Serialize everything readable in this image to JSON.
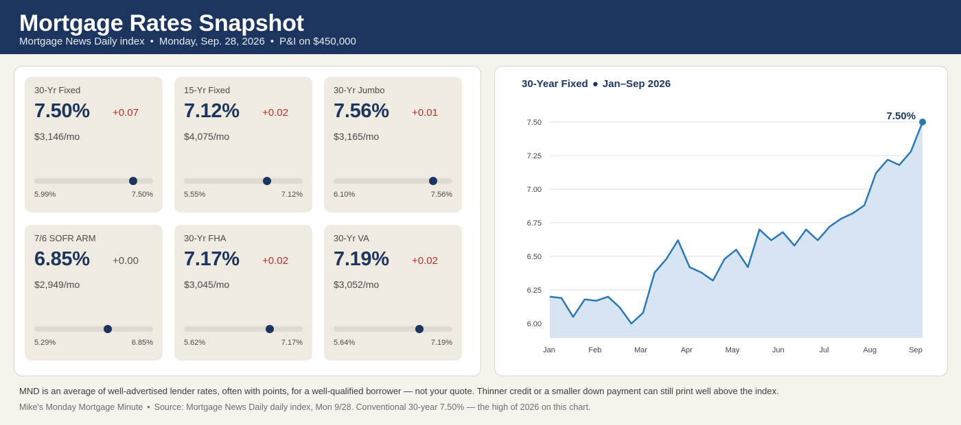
{
  "header": {
    "title": "Mortgage Rates Snapshot",
    "source": "Mortgage News Daily index",
    "date": "Monday, Sep. 28, 2026",
    "basis": "P&I on $450,000",
    "separator": "•"
  },
  "cards": [
    {
      "label": "30-Yr Fixed",
      "rate": "7.50%",
      "change": "+0.07",
      "payment": "$3,146/mo",
      "range_low": "5.99%",
      "range_high": "7.50%",
      "position": 0.83
    },
    {
      "label": "15-Yr Fixed",
      "rate": "7.12%",
      "change": "+0.02",
      "payment": "$4,075/mo",
      "range_low": "5.55%",
      "range_high": "7.12%",
      "position": 0.7
    },
    {
      "label": "30-Yr Jumbo",
      "rate": "7.56%",
      "change": "+0.01",
      "payment": "$3,165/mo",
      "range_low": "6.10%",
      "range_high": "7.56%",
      "position": 0.84
    },
    {
      "label": "7/6 SOFR ARM",
      "rate": "6.85%",
      "change": "+0.00",
      "payment": "$2,949/mo",
      "range_low": "5.29%",
      "range_high": "6.85%",
      "position": 0.62
    },
    {
      "label": "30-Yr FHA",
      "rate": "7.17%",
      "change": "+0.02",
      "payment": "$3,045/mo",
      "range_low": "5.62%",
      "range_high": "7.17%",
      "position": 0.72
    },
    {
      "label": "30-Yr VA",
      "rate": "7.19%",
      "change": "+0.02",
      "payment": "$3,052/mo",
      "range_low": "5.64%",
      "range_high": "7.19%",
      "position": 0.72
    }
  ],
  "chart": {
    "series_name": "30-Year Fixed",
    "period": "Jan–Sep 2026",
    "separator": "●",
    "end_label": "7.50%"
  },
  "chart_data": {
    "type": "area",
    "title": "30-Year Fixed ● Jan–Sep 2026",
    "xlabel": "",
    "ylabel": "",
    "ylim": [
      5.9,
      7.6
    ],
    "yticks": [
      "7.50",
      "7.25",
      "7.00",
      "6.75",
      "6.50",
      "6.25",
      "6.00"
    ],
    "xticks": [
      "Jan",
      "Feb",
      "Mar",
      "Apr",
      "May",
      "Jun",
      "Jul",
      "Aug",
      "Sep"
    ],
    "grid": true,
    "series": [
      {
        "values": [
          6.2,
          6.19,
          6.05,
          6.18,
          6.17,
          6.2,
          6.12,
          6.0,
          6.08,
          6.38,
          6.48,
          6.62,
          6.42,
          6.38,
          6.32,
          6.48,
          6.55,
          6.42,
          6.7,
          6.62,
          6.68,
          6.58,
          6.7,
          6.62,
          6.72,
          6.78,
          6.82,
          6.88,
          7.12,
          7.22,
          7.18,
          7.28,
          7.5
        ]
      }
    ],
    "colors": {
      "line": "#2b77b5",
      "fill": "#d7e5f2",
      "end_marker": "#2b77b5"
    }
  },
  "footnote": "MND is an average of well-advertised lender rates, often with points, for a well-qualified borrower — not your quote. Thinner credit or a smaller down payment can still print well above the index.",
  "source_line": {
    "byline": "Mike's Monday Mortgage Minute",
    "separator": "•",
    "text": "Source: Mortgage News Daily daily index, Mon 9/28. Conventional 30-year 7.50% — the high of 2026 on this chart."
  },
  "colors": {
    "navy": "#1c355e",
    "card_bg": "#f0ebe1",
    "page_bg": "#f5f3ec",
    "up": "#b5312e",
    "flat": "#555555"
  }
}
